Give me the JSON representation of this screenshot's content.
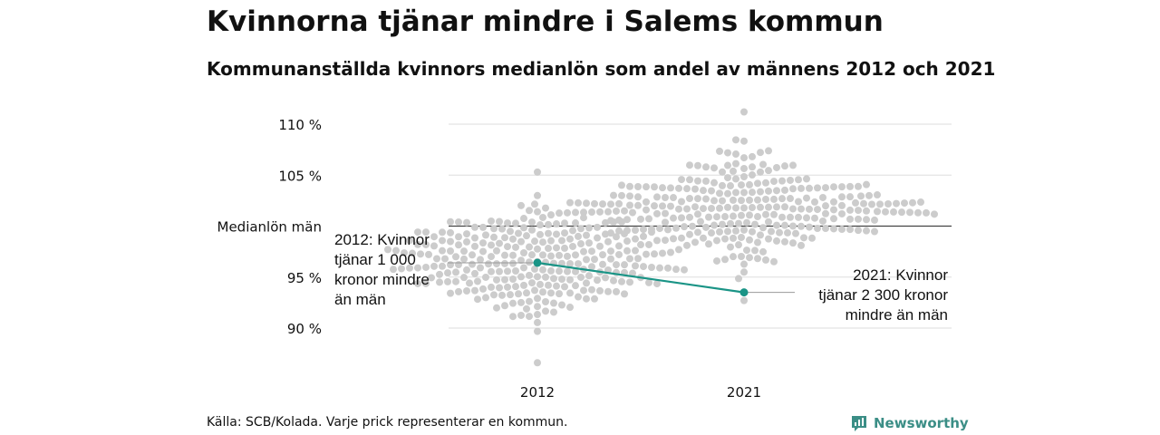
{
  "title": "Kvinnorna tjänar mindre i Salems kommun",
  "subtitle": "Kommunanställda kvinnors medianlön som andel av männens 2012 och 2021",
  "source": "Källa: SCB/Kolada. Varje prick representerar en kommun.",
  "logo": {
    "text": "Newsworthy",
    "icon": "newsworthy-chart-icon"
  },
  "colors": {
    "dots": "#cccccc",
    "highlight": "#1a9486",
    "reference_line": "#444444",
    "grid": "#dddddd"
  },
  "chart_data": {
    "type": "scatter",
    "categories": [
      "2012",
      "2021"
    ],
    "ylim": [
      86,
      112
    ],
    "yticks": [
      {
        "value": 90,
        "label": "90 %"
      },
      {
        "value": 95,
        "label": "95 %"
      },
      {
        "value": 105,
        "label": "105 %"
      },
      {
        "value": 110,
        "label": "110 %"
      }
    ],
    "reference_line": {
      "value": 100,
      "label": "Medianlön män"
    },
    "highlight": {
      "values": [
        96.4,
        93.5
      ],
      "annotations": [
        {
          "category": "2012",
          "lines": [
            "2012: Kvinnor",
            "tjänar 1 000",
            "kronor mindre",
            "än män"
          ]
        },
        {
          "category": "2021",
          "lines": [
            "2021: Kvinnor",
            "tjänar 2 300 kronor",
            "mindre än män"
          ]
        }
      ]
    },
    "distributions": [
      {
        "category": "2012",
        "median": 96.5,
        "spread": 2.6,
        "min": 86.6,
        "max": 105.3,
        "count": 290
      },
      {
        "category": "2021",
        "median": 101.8,
        "spread": 2.4,
        "min": 92.7,
        "max": 111.2,
        "count": 290
      }
    ]
  }
}
